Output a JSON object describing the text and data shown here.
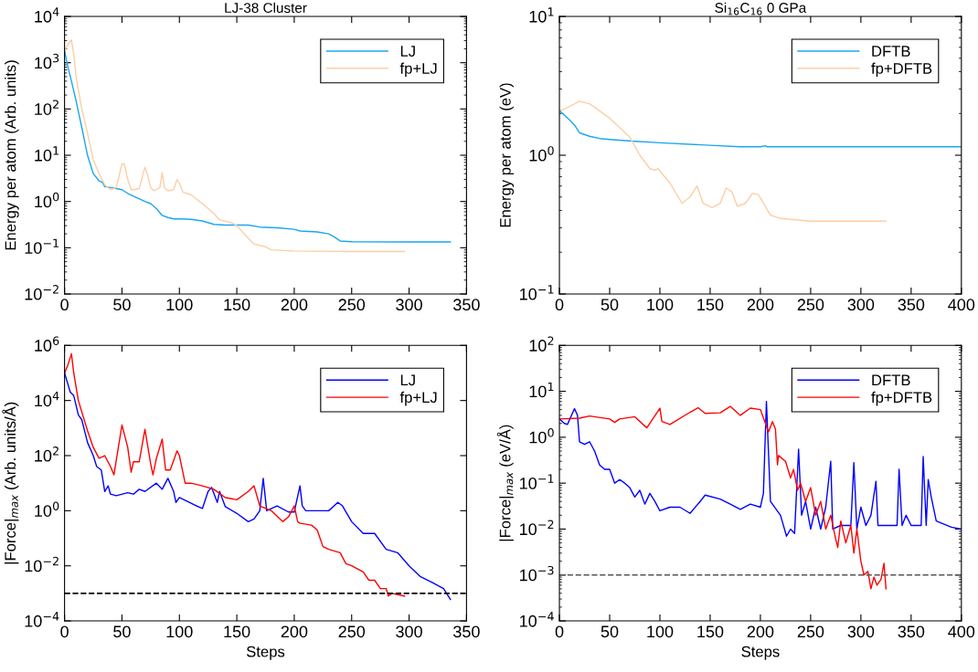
{
  "chart_data": [
    {
      "type": "line",
      "title": "LJ-38 Cluster",
      "ylabel": "Energy per atom (Arb. units)",
      "log": "y",
      "legend": "top right",
      "grid": false,
      "xlim": [
        0,
        350
      ],
      "xticks": [
        0,
        50,
        100,
        150,
        200,
        250,
        300,
        350
      ],
      "ylim": [
        0.01,
        10000
      ],
      "yticks": [
        {
          "value": 0.01,
          "label": "10$^{−2}$"
        },
        {
          "value": 0.1,
          "label": "10$^{−1}$"
        },
        {
          "value": 1,
          "label": "10$^{0}$"
        },
        {
          "value": 10,
          "label": "10$^{1}$"
        },
        {
          "value": 100,
          "label": "10$^{2}$"
        },
        {
          "value": 1000,
          "label": "10$^{3}$"
        },
        {
          "value": 10000,
          "label": "10$^{4}$"
        }
      ],
      "series": [
        {
          "name": "LJ",
          "color": "#1aa6f0",
          "x": [
            0,
            3,
            6,
            10,
            15,
            20,
            25,
            30,
            33,
            35,
            40,
            45,
            50,
            55,
            60,
            70,
            75,
            80,
            85,
            90,
            95,
            100,
            110,
            120,
            130,
            140,
            160,
            170,
            185,
            200,
            205,
            220,
            230,
            235,
            240,
            250,
            300,
            336
          ],
          "values": [
            1800,
            800,
            400,
            150,
            40,
            10,
            4,
            2.8,
            2.6,
            2.1,
            2.0,
            1.9,
            1.8,
            1.5,
            1.3,
            1.0,
            0.9,
            0.7,
            0.5,
            0.45,
            0.42,
            0.42,
            0.41,
            0.38,
            0.32,
            0.31,
            0.31,
            0.28,
            0.27,
            0.25,
            0.23,
            0.22,
            0.2,
            0.17,
            0.14,
            0.135,
            0.133,
            0.133
          ]
        },
        {
          "name": "fp+LJ",
          "color": "#fbcfa4",
          "x": [
            0,
            3,
            6,
            8,
            10,
            15,
            20,
            25,
            30,
            35,
            40,
            45,
            48,
            50,
            52,
            55,
            58,
            60,
            65,
            70,
            72,
            75,
            78,
            83,
            85,
            87,
            90,
            95,
            98,
            100,
            103,
            110,
            120,
            130,
            135,
            145,
            150,
            160,
            165,
            175,
            180,
            200,
            250,
            296
          ],
          "values": [
            1800,
            2500,
            3100,
            1500,
            500,
            100,
            30,
            8,
            4,
            2.3,
            1.8,
            2.0,
            4,
            6.5,
            6.5,
            3,
            1.8,
            1.8,
            1.9,
            5.5,
            4,
            2,
            1.7,
            2.0,
            4.2,
            2,
            1.7,
            1.8,
            3,
            2.5,
            1.6,
            1.4,
            0.9,
            0.55,
            0.4,
            0.35,
            0.3,
            0.16,
            0.12,
            0.105,
            0.09,
            0.085,
            0.083,
            0.083
          ]
        }
      ]
    },
    {
      "type": "line",
      "title": "Si$_{16}$C$_{16}$ 0 GPa",
      "ylabel": "Energy per atom (eV)",
      "log": "y",
      "legend": "top right",
      "grid": false,
      "xlim": [
        0,
        400
      ],
      "xticks": [
        0,
        50,
        100,
        150,
        200,
        250,
        300,
        350,
        400
      ],
      "ylim": [
        0.1,
        10
      ],
      "yticks": [
        {
          "value": 0.1,
          "label": "10$^{−1}$"
        },
        {
          "value": 1,
          "label": "10$^{0}$"
        },
        {
          "value": 10,
          "label": "10$^{1}$"
        }
      ],
      "series": [
        {
          "name": "DFTB",
          "color": "#1aa6f0",
          "x": [
            0,
            10,
            15,
            20,
            30,
            40,
            50,
            75,
            100,
            150,
            180,
            200,
            205,
            207,
            250,
            400
          ],
          "values": [
            2.1,
            1.8,
            1.65,
            1.45,
            1.37,
            1.32,
            1.3,
            1.26,
            1.23,
            1.18,
            1.15,
            1.15,
            1.17,
            1.15,
            1.15,
            1.15
          ]
        },
        {
          "name": "fp+DFTB",
          "color": "#fbcfa4",
          "x": [
            0,
            5,
            20,
            30,
            50,
            70,
            80,
            90,
            95,
            98,
            110,
            122,
            130,
            137,
            143,
            152,
            160,
            166,
            172,
            177,
            185,
            192,
            198,
            210,
            220,
            250,
            325
          ],
          "values": [
            2.1,
            2.15,
            2.45,
            2.35,
            1.85,
            1.35,
            1.0,
            0.8,
            0.78,
            0.8,
            0.63,
            0.45,
            0.5,
            0.6,
            0.45,
            0.42,
            0.45,
            0.58,
            0.54,
            0.43,
            0.45,
            0.53,
            0.52,
            0.37,
            0.35,
            0.335,
            0.335
          ]
        }
      ]
    },
    {
      "type": "line",
      "xlabel": "Steps",
      "ylabel": "|Force|$_{max}$ (Arb. units/Å)",
      "log": "y",
      "legend": "top right",
      "grid": false,
      "xlim": [
        0,
        350
      ],
      "xticks": [
        0,
        50,
        100,
        150,
        200,
        250,
        300,
        350
      ],
      "ylim": [
        0.0001,
        1000000
      ],
      "yticks": [
        {
          "value": 0.0001,
          "label": "10$^{−4}$"
        },
        {
          "value": 0.01,
          "label": "10$^{−2}$"
        },
        {
          "value": 1,
          "label": "10$^{0}$"
        },
        {
          "value": 100,
          "label": "10$^{2}$"
        },
        {
          "value": 10000,
          "label": "10$^{4}$"
        },
        {
          "value": 1000000,
          "label": "10$^{6}$"
        }
      ],
      "ref_lines": [
        {
          "axis": "y",
          "value": 0.001,
          "color": "#000000",
          "line_style": "dashed"
        }
      ],
      "series": [
        {
          "name": "LJ",
          "color": "#0000ff",
          "x": [
            0,
            5,
            8,
            12,
            15,
            20,
            25,
            28,
            32,
            35,
            38,
            40,
            45,
            55,
            60,
            65,
            70,
            80,
            85,
            90,
            95,
            97,
            100,
            115,
            120,
            125,
            128,
            133,
            135,
            140,
            150,
            160,
            165,
            170,
            173,
            176,
            185,
            195,
            200,
            205,
            207,
            210,
            220,
            230,
            238,
            242,
            250,
            260,
            270,
            280,
            290,
            300,
            310,
            320,
            330,
            336
          ],
          "values": [
            100000,
            20000,
            15000,
            3000,
            2000,
            300,
            100,
            40,
            30,
            5,
            8,
            4,
            3.5,
            4.5,
            4,
            6,
            5,
            10,
            6,
            15,
            5,
            2,
            3,
            1.5,
            1.2,
            5,
            7,
            2,
            5,
            1.4,
            0.8,
            0.4,
            0.5,
            1,
            15,
            1,
            1.5,
            0.9,
            0.9,
            8,
            1.5,
            1,
            1,
            1,
            2,
            1.5,
            0.4,
            0.15,
            0.15,
            0.04,
            0.03,
            0.01,
            0.004,
            0.0025,
            0.0015,
            0.0006
          ]
        },
        {
          "name": "fp+LJ",
          "color": "#ff0000",
          "x": [
            0,
            3,
            6,
            8,
            12,
            20,
            25,
            30,
            35,
            40,
            43,
            50,
            55,
            58,
            60,
            65,
            70,
            75,
            77,
            80,
            85,
            88,
            92,
            98,
            100,
            105,
            110,
            120,
            130,
            140,
            150,
            160,
            165,
            170,
            180,
            190,
            195,
            200,
            203,
            205,
            215,
            220,
            225,
            230,
            240,
            245,
            250,
            260,
            265,
            270,
            275,
            280,
            282,
            285,
            296
          ],
          "values": [
            100000,
            200000,
            500000,
            100000,
            10000,
            800,
            200,
            80,
            100,
            40,
            20,
            1300,
            200,
            25,
            60,
            60,
            900,
            50,
            20,
            80,
            400,
            30,
            30,
            150,
            100,
            10,
            10,
            8,
            6,
            3,
            2.5,
            5,
            8,
            1.5,
            1,
            0.4,
            0.6,
            1.5,
            0.4,
            0.35,
            0.3,
            0.2,
            0.05,
            0.04,
            0.03,
            0.012,
            0.01,
            0.006,
            0.003,
            0.003,
            0.0015,
            0.0015,
            0.0008,
            0.001,
            0.0008
          ]
        }
      ]
    },
    {
      "type": "line",
      "xlabel": "Steps",
      "ylabel": "|Force|$_{max}$ (eV/Å)",
      "log": "y",
      "legend": "top right",
      "grid": false,
      "xlim": [
        0,
        400
      ],
      "xticks": [
        0,
        50,
        100,
        150,
        200,
        250,
        300,
        350,
        400
      ],
      "ylim": [
        0.0001,
        100
      ],
      "yticks": [
        {
          "value": 0.0001,
          "label": "10$^{−4}$"
        },
        {
          "value": 0.001,
          "label": "10$^{−3}$"
        },
        {
          "value": 0.01,
          "label": "10$^{−2}$"
        },
        {
          "value": 0.1,
          "label": "10$^{−1}$"
        },
        {
          "value": 1,
          "label": "10$^{0}$"
        },
        {
          "value": 10,
          "label": "10$^{1}$"
        },
        {
          "value": 100,
          "label": "10$^{2}$"
        }
      ],
      "ref_lines": [
        {
          "axis": "y",
          "value": 0.001,
          "color": "#555555",
          "line_style": "dashed"
        }
      ],
      "series": [
        {
          "name": "DFTB",
          "color": "#0000ff",
          "x": [
            0,
            5,
            8,
            15,
            18,
            20,
            25,
            30,
            35,
            40,
            45,
            50,
            55,
            60,
            65,
            70,
            75,
            80,
            85,
            90,
            95,
            100,
            110,
            120,
            130,
            140,
            145,
            160,
            170,
            180,
            190,
            200,
            203,
            206,
            208,
            210,
            220,
            226,
            230,
            234,
            238,
            241,
            245,
            250,
            255,
            260,
            265,
            270,
            272,
            280,
            290,
            293,
            296,
            300,
            305,
            310,
            315,
            317,
            330,
            336,
            338,
            341,
            345,
            350,
            355,
            360,
            362,
            365,
            367,
            370,
            375,
            390,
            400
          ],
          "values": [
            2.5,
            2,
            1.9,
            4.2,
            3,
            0.8,
            0.7,
            0.8,
            0.5,
            0.25,
            0.2,
            0.2,
            0.1,
            0.12,
            0.1,
            0.08,
            0.05,
            0.07,
            0.035,
            0.06,
            0.04,
            0.025,
            0.03,
            0.03,
            0.022,
            0.04,
            0.055,
            0.045,
            0.035,
            0.027,
            0.035,
            0.03,
            0.06,
            6,
            0.5,
            0.04,
            0.02,
            0.007,
            0.01,
            0.008,
            0.55,
            0.02,
            0.04,
            0.01,
            0.03,
            0.01,
            0.03,
            0.3,
            0.01,
            0.012,
            0.012,
            0.28,
            0.01,
            0.03,
            0.012,
            0.02,
            0.11,
            0.012,
            0.012,
            0.012,
            0.2,
            0.012,
            0.02,
            0.012,
            0.012,
            0.012,
            0.38,
            0.012,
            0.12,
            0.05,
            0.015,
            0.011,
            0.01
          ]
        },
        {
          "name": "fp+DFTB",
          "color": "#ff0000",
          "x": [
            0,
            20,
            30,
            50,
            55,
            60,
            75,
            87,
            100,
            102,
            110,
            130,
            138,
            145,
            160,
            170,
            180,
            190,
            200,
            205,
            208,
            212,
            215,
            217,
            218,
            225,
            230,
            233,
            237,
            240,
            245,
            250,
            255,
            260,
            265,
            270,
            275,
            277,
            280,
            285,
            290,
            293,
            296,
            300,
            303,
            307,
            310,
            313,
            316,
            320,
            323,
            325
          ],
          "values": [
            2.5,
            2.6,
            2.9,
            2.5,
            2.1,
            2.5,
            2.8,
            1.6,
            4.3,
            2.2,
            1.9,
            3.5,
            4.4,
            3.3,
            3.4,
            4.7,
            3.0,
            4.3,
            4,
            2,
            1.3,
            2.2,
            1.5,
            0.25,
            0.4,
            0.3,
            0.13,
            0.2,
            0.07,
            0.1,
            0.04,
            0.08,
            0.02,
            0.04,
            0.01,
            0.02,
            0.006,
            0.004,
            0.015,
            0.005,
            0.012,
            0.003,
            0.01,
            0.002,
            0.001,
            0.0012,
            0.0005,
            0.0009,
            0.0006,
            0.0008,
            0.0018,
            0.0005
          ]
        }
      ]
    }
  ]
}
